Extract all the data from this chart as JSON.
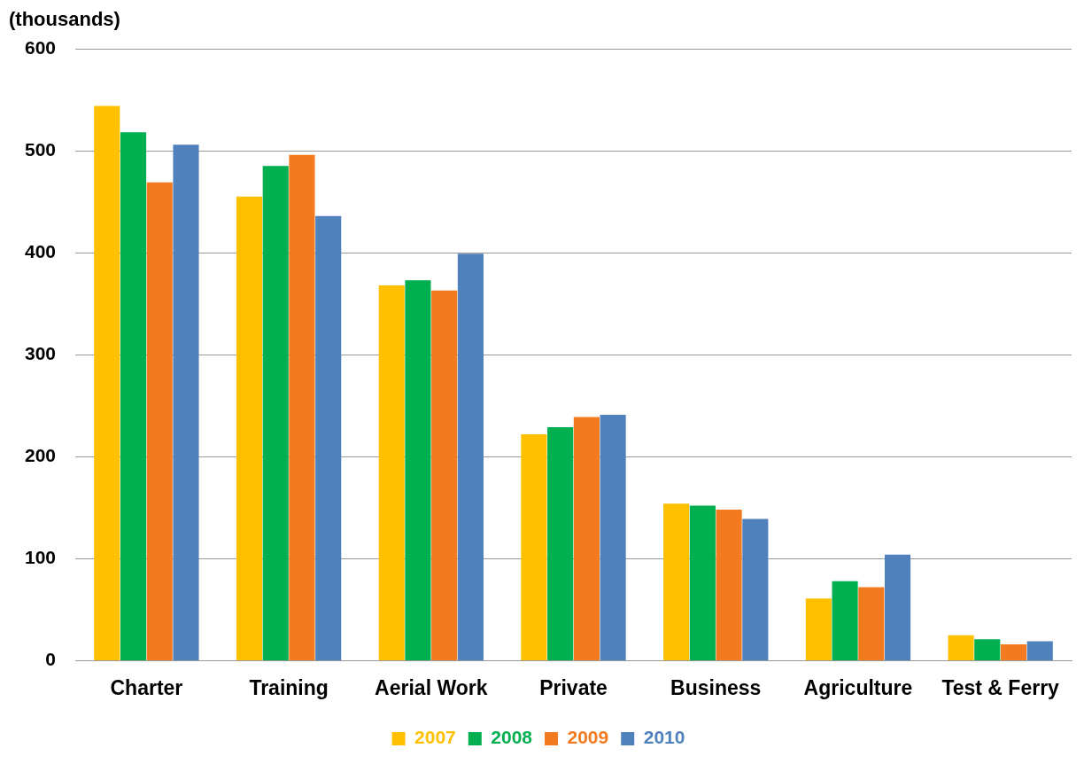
{
  "chart_data": {
    "type": "bar",
    "ylabel": "(thousands)",
    "categories": [
      "Charter",
      "Training",
      "Aerial Work",
      "Private",
      "Business",
      "Agriculture",
      "Test & Ferry"
    ],
    "series": [
      {
        "name": "2007",
        "color": "#ffc000",
        "values": [
          544,
          455,
          368,
          222,
          154,
          61,
          25
        ]
      },
      {
        "name": "2008",
        "color": "#00b050",
        "values": [
          518,
          485,
          373,
          229,
          152,
          78,
          21
        ]
      },
      {
        "name": "2009",
        "color": "#f47a1f",
        "values": [
          469,
          496,
          363,
          239,
          148,
          72,
          16
        ]
      },
      {
        "name": "2010",
        "color": "#4f81bd",
        "values": [
          506,
          436,
          399,
          241,
          139,
          104,
          19
        ]
      }
    ],
    "ylim": [
      0,
      600
    ],
    "yticks": [
      0,
      100,
      200,
      300,
      400,
      500,
      600
    ],
    "grid": "y",
    "legend": "bottom"
  }
}
